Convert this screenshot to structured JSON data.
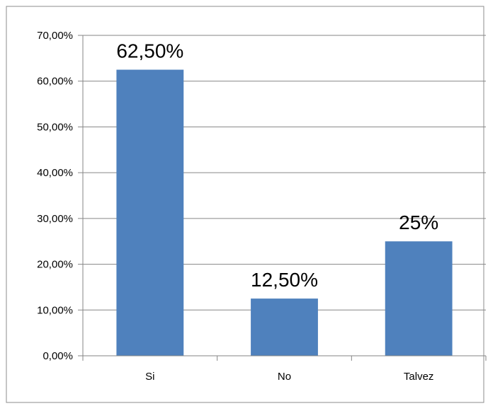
{
  "chart_data": {
    "type": "bar",
    "categories": [
      "Si",
      "No",
      "Talvez"
    ],
    "values": [
      62.5,
      12.5,
      25
    ],
    "data_labels": [
      "62,50%",
      "12,50%",
      "25%"
    ],
    "ylim": [
      0,
      70
    ],
    "yticks": [
      0,
      10,
      20,
      30,
      40,
      50,
      60,
      70
    ],
    "ytick_labels": [
      "0,00%",
      "10,00%",
      "20,00%",
      "30,00%",
      "40,00%",
      "50,00%",
      "60,00%",
      "70,00%"
    ],
    "title": "",
    "xlabel": "",
    "ylabel": "",
    "grid": true,
    "legend": false,
    "bar_color": "#4F81BD"
  }
}
